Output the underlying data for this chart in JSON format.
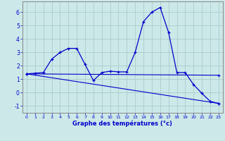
{
  "xlabel": "Graphe des températures (°c)",
  "xlim": [
    -0.5,
    23.5
  ],
  "ylim": [
    -1.5,
    6.8
  ],
  "xticks": [
    0,
    1,
    2,
    3,
    4,
    5,
    6,
    7,
    8,
    9,
    10,
    11,
    12,
    13,
    14,
    15,
    16,
    17,
    18,
    19,
    20,
    21,
    22,
    23
  ],
  "yticks": [
    -1,
    0,
    1,
    2,
    3,
    4,
    5,
    6
  ],
  "bg_color": "#cce8e8",
  "grid_color": "#aacccc",
  "line_color": "#0000cc",
  "series1_x": [
    0,
    1,
    2,
    3,
    4,
    5,
    6,
    7,
    8,
    9,
    10,
    11,
    12,
    13,
    14,
    15,
    16,
    17,
    18,
    19,
    20,
    21,
    22,
    23
  ],
  "series1_y": [
    1.4,
    1.45,
    1.5,
    2.5,
    3.0,
    3.3,
    3.3,
    2.1,
    0.9,
    1.5,
    1.6,
    1.55,
    1.55,
    3.0,
    5.3,
    6.0,
    6.35,
    4.5,
    1.5,
    1.5,
    0.6,
    -0.05,
    -0.65,
    -0.8
  ],
  "series2_x": [
    0,
    23
  ],
  "series2_y": [
    1.4,
    1.3
  ],
  "series3_x": [
    0,
    23
  ],
  "series3_y": [
    1.4,
    -0.8
  ]
}
